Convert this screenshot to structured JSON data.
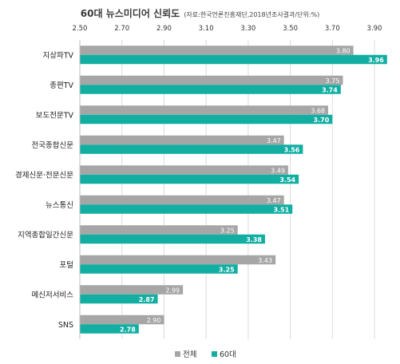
{
  "chart_data": {
    "type": "bar",
    "orientation": "horizontal",
    "title": "60대 뉴스미디어 신뢰도",
    "subtitle": "(자료:한국언론진흥재단,2018년조사결과/단위:%)",
    "xlim": [
      2.5,
      3.9
    ],
    "ticks": [
      "2.50",
      "2.70",
      "2.90",
      "3.10",
      "3.30",
      "3.50",
      "3.70",
      "3.90"
    ],
    "categories": [
      "지상파TV",
      "종편TV",
      "보도전문TV",
      "전국종합신문",
      "경제신문·전문신문",
      "뉴스통신",
      "지역종합일간신문",
      "포털",
      "메신저서비스",
      "SNS"
    ],
    "series": [
      {
        "name": "전체",
        "color": "#a6a6a6",
        "values": [
          3.8,
          3.75,
          3.68,
          3.47,
          3.49,
          3.47,
          3.25,
          3.43,
          2.99,
          2.9
        ]
      },
      {
        "name": "60대",
        "color": "#12aea2",
        "values": [
          3.96,
          3.74,
          3.7,
          3.56,
          3.54,
          3.51,
          3.38,
          3.25,
          2.87,
          2.78
        ]
      }
    ],
    "grid": true,
    "legend_position": "bottom"
  }
}
